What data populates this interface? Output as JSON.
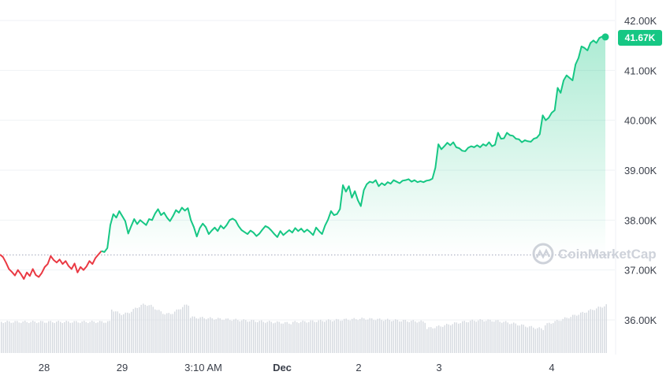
{
  "chart_data": {
    "type": "line",
    "ylim": [
      35000,
      42300
    ],
    "y_ticks": [
      "42.00K",
      "41.00K",
      "40.00K",
      "39.00K",
      "38.00K",
      "37.00K",
      "36.00K"
    ],
    "y_tick_values": [
      42000,
      41000,
      40000,
      39000,
      38000,
      37000,
      36000
    ],
    "x_ticks": [
      "28",
      "29",
      "3:10 AM",
      "Dec",
      "2",
      "3",
      "4"
    ],
    "baseline": 37300,
    "current_price_label": "41.67K",
    "watermark": "CoinMarketCap",
    "colors": {
      "up": "#16c784",
      "down": "#ea3943",
      "area": "#16c784",
      "grid": "#eff2f5",
      "volume": "#d6dae0",
      "label_bg": "#16c784",
      "baseline": "#a1a7bb"
    },
    "series": [
      {
        "values": [
          37310,
          37260,
          37150,
          37020,
          36960,
          36890,
          37000,
          36920,
          36820,
          36950,
          36880,
          37020,
          36900,
          36860,
          36940,
          37060,
          37120,
          37280,
          37200,
          37150,
          37210,
          37120,
          37180,
          37080,
          37020,
          37130,
          36950,
          37060,
          37000,
          37070,
          37180,
          37120,
          37240,
          37310,
          37380,
          37360,
          37440,
          37900,
          38120,
          38050,
          38180,
          38080,
          37980,
          37730,
          37880,
          38020,
          37920,
          38000,
          37950,
          37900,
          38020,
          38000,
          38130,
          38220,
          38100,
          38150,
          38050,
          37980,
          38080,
          38200,
          38150,
          38250,
          38190,
          38240,
          38000,
          37860,
          37670,
          37840,
          37930,
          37860,
          37720,
          37790,
          37850,
          37780,
          37890,
          37830,
          37900,
          38000,
          38030,
          37990,
          37880,
          37800,
          37760,
          37720,
          37790,
          37750,
          37680,
          37730,
          37810,
          37880,
          37850,
          37790,
          37720,
          37660,
          37780,
          37700,
          37750,
          37800,
          37750,
          37840,
          37780,
          37830,
          37760,
          37810,
          37760,
          37700,
          37850,
          37780,
          37720,
          37890,
          38010,
          38180,
          38100,
          38120,
          38220,
          38700,
          38570,
          38680,
          38450,
          38580,
          38400,
          38280,
          38600,
          38720,
          38770,
          38750,
          38800,
          38680,
          38740,
          38700,
          38760,
          38730,
          38800,
          38770,
          38740,
          38790,
          38800,
          38820,
          38770,
          38800,
          38760,
          38780,
          38760,
          38790,
          38800,
          38830,
          39050,
          39520,
          39420,
          39480,
          39550,
          39500,
          39560,
          39460,
          39440,
          39390,
          39380,
          39450,
          39480,
          39460,
          39500,
          39460,
          39520,
          39490,
          39560,
          39480,
          39510,
          39750,
          39630,
          39640,
          39750,
          39700,
          39690,
          39630,
          39620,
          39560,
          39600,
          39580,
          39570,
          39630,
          39650,
          39720,
          40100,
          40000,
          40050,
          40150,
          40200,
          40650,
          40550,
          40800,
          40900,
          40850,
          40800,
          41120,
          41250,
          41480,
          41450,
          41400,
          41550,
          41600,
          41550,
          41650,
          41680,
          41670
        ]
      }
    ]
  }
}
